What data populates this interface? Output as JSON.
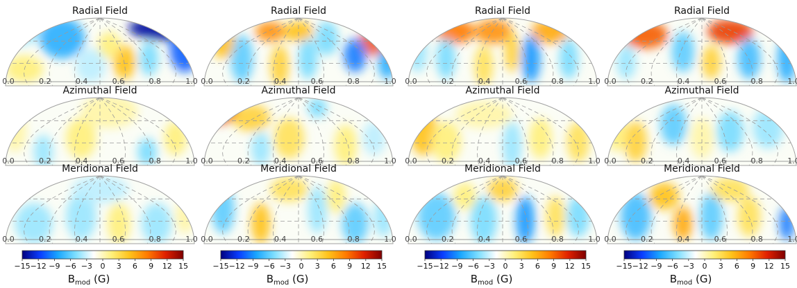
{
  "chart_data": {
    "type": "heatmap",
    "projection": "hemispheric aitoff-like (upper half)",
    "panel_titles": [
      "Radial Field",
      "Azimuthal Field",
      "Meridional Field"
    ],
    "phase_ticks": [
      "0.0",
      "0.2",
      "0.4",
      "0.6",
      "0.8",
      "1.0"
    ],
    "colorbar": {
      "ticks": [
        "−15",
        "−12",
        "−9",
        "−6",
        "−3",
        "0",
        "3",
        "6",
        "9",
        "12",
        "15"
      ],
      "range": [
        -15,
        15
      ],
      "label_main": "B",
      "label_sub": "mod",
      "label_unit": "(G)",
      "colors": [
        "#00007f",
        "#0a3dff",
        "#1aa7ff",
        "#7fdfff",
        "#ffffff",
        "#fff07a",
        "#ffc21a",
        "#ff7a00",
        "#e02000",
        "#7f0000"
      ]
    },
    "columns": [
      {
        "panels": [
          {
            "title": "Radial Field",
            "blobs": [
              {
                "x": 0.05,
                "lat": 0.8,
                "v": -3,
                "rx": 0.14,
                "ry": 0.2
              },
              {
                "x": 0.3,
                "lat": 0.7,
                "v": -7,
                "rx": 0.12,
                "ry": 0.3
              },
              {
                "x": 0.85,
                "lat": 0.85,
                "v": -14,
                "rx": 0.2,
                "ry": 0.18
              },
              {
                "x": 0.95,
                "lat": 0.55,
                "v": -10,
                "rx": 0.08,
                "ry": 0.35
              },
              {
                "x": 0.63,
                "lat": 0.35,
                "v": 6,
                "rx": 0.06,
                "ry": 0.25
              },
              {
                "x": 0.55,
                "lat": 0.6,
                "v": 3,
                "rx": 0.06,
                "ry": 0.2
              },
              {
                "x": 0.1,
                "lat": 0.25,
                "v": 3,
                "rx": 0.1,
                "ry": 0.2
              },
              {
                "x": 0.45,
                "lat": 0.3,
                "v": -2,
                "rx": 0.08,
                "ry": 0.25
              },
              {
                "x": 0.76,
                "lat": 0.4,
                "v": -4,
                "rx": 0.05,
                "ry": 0.25
              }
            ]
          },
          {
            "title": "Azimuthal Field",
            "blobs": [
              {
                "x": 0.2,
                "lat": 0.2,
                "v": -3,
                "rx": 0.05,
                "ry": 0.25
              },
              {
                "x": 0.4,
                "lat": 0.4,
                "v": 3,
                "rx": 0.08,
                "ry": 0.3
              },
              {
                "x": 0.55,
                "lat": 0.8,
                "v": 2,
                "rx": 0.15,
                "ry": 0.25
              },
              {
                "x": 0.75,
                "lat": 0.2,
                "v": -4,
                "rx": 0.05,
                "ry": 0.2
              },
              {
                "x": 0.9,
                "lat": 0.4,
                "v": 3,
                "rx": 0.06,
                "ry": 0.25
              },
              {
                "x": 0.05,
                "lat": 0.5,
                "v": 2,
                "rx": 0.06,
                "ry": 0.3
              }
            ]
          },
          {
            "title": "Meridional Field",
            "blobs": [
              {
                "x": 0.15,
                "lat": 0.3,
                "v": -3,
                "rx": 0.1,
                "ry": 0.3
              },
              {
                "x": 0.4,
                "lat": 0.4,
                "v": -3,
                "rx": 0.08,
                "ry": 0.35
              },
              {
                "x": 0.6,
                "lat": 0.3,
                "v": 3,
                "rx": 0.06,
                "ry": 0.3
              },
              {
                "x": 0.8,
                "lat": 0.3,
                "v": -3,
                "rx": 0.08,
                "ry": 0.3
              },
              {
                "x": 0.5,
                "lat": 0.8,
                "v": -2,
                "rx": 0.15,
                "ry": 0.2
              },
              {
                "x": 0.95,
                "lat": 0.4,
                "v": 2,
                "rx": 0.05,
                "ry": 0.25
              }
            ]
          }
        ]
      },
      {
        "panels": [
          {
            "title": "Radial Field",
            "blobs": [
              {
                "x": 0.35,
                "lat": 0.8,
                "v": 8,
                "rx": 0.08,
                "ry": 0.15
              },
              {
                "x": 0.5,
                "lat": 0.8,
                "v": 6,
                "rx": 0.08,
                "ry": 0.15
              },
              {
                "x": 0.9,
                "lat": 0.65,
                "v": 10,
                "rx": 0.08,
                "ry": 0.2
              },
              {
                "x": 0.8,
                "lat": 0.45,
                "v": -9,
                "rx": 0.06,
                "ry": 0.25
              },
              {
                "x": 0.65,
                "lat": 0.7,
                "v": -4,
                "rx": 0.06,
                "ry": 0.25
              },
              {
                "x": 0.2,
                "lat": 0.4,
                "v": -5,
                "rx": 0.06,
                "ry": 0.35
              },
              {
                "x": 0.1,
                "lat": 0.65,
                "v": 6,
                "rx": 0.06,
                "ry": 0.25
              },
              {
                "x": 0.4,
                "lat": 0.3,
                "v": 5,
                "rx": 0.05,
                "ry": 0.3
              },
              {
                "x": 0.55,
                "lat": 0.4,
                "v": -4,
                "rx": 0.05,
                "ry": 0.3
              },
              {
                "x": 0.97,
                "lat": 0.35,
                "v": -7,
                "rx": 0.05,
                "ry": 0.25
              }
            ]
          },
          {
            "title": "Azimuthal Field",
            "blobs": [
              {
                "x": 0.08,
                "lat": 0.8,
                "v": 11,
                "rx": 0.1,
                "ry": 0.18
              },
              {
                "x": 0.25,
                "lat": 0.7,
                "v": 5,
                "rx": 0.1,
                "ry": 0.2
              },
              {
                "x": 0.45,
                "lat": 0.4,
                "v": 4,
                "rx": 0.08,
                "ry": 0.3
              },
              {
                "x": 0.6,
                "lat": 0.85,
                "v": -4,
                "rx": 0.05,
                "ry": 0.15
              },
              {
                "x": 0.75,
                "lat": 0.3,
                "v": 3,
                "rx": 0.06,
                "ry": 0.3
              },
              {
                "x": 0.3,
                "lat": 0.25,
                "v": -3,
                "rx": 0.05,
                "ry": 0.25
              },
              {
                "x": 0.9,
                "lat": 0.4,
                "v": -2,
                "rx": 0.06,
                "ry": 0.25
              }
            ]
          },
          {
            "title": "Meridional Field",
            "blobs": [
              {
                "x": 0.1,
                "lat": 0.5,
                "v": -5,
                "rx": 0.06,
                "ry": 0.35
              },
              {
                "x": 0.3,
                "lat": 0.3,
                "v": 6,
                "rx": 0.05,
                "ry": 0.3
              },
              {
                "x": 0.45,
                "lat": 0.8,
                "v": 4,
                "rx": 0.1,
                "ry": 0.18
              },
              {
                "x": 0.6,
                "lat": 0.5,
                "v": -3,
                "rx": 0.05,
                "ry": 0.35
              },
              {
                "x": 0.8,
                "lat": 0.3,
                "v": -5,
                "rx": 0.07,
                "ry": 0.3
              },
              {
                "x": 0.7,
                "lat": 0.7,
                "v": 3,
                "rx": 0.05,
                "ry": 0.25
              },
              {
                "x": 0.95,
                "lat": 0.4,
                "v": -3,
                "rx": 0.05,
                "ry": 0.3
              }
            ]
          }
        ]
      },
      {
        "panels": [
          {
            "title": "Radial Field",
            "blobs": [
              {
                "x": 0.25,
                "lat": 0.8,
                "v": 9,
                "rx": 0.1,
                "ry": 0.18
              },
              {
                "x": 0.45,
                "lat": 0.8,
                "v": 8,
                "rx": 0.1,
                "ry": 0.18
              },
              {
                "x": 0.75,
                "lat": 0.8,
                "v": 7,
                "rx": 0.1,
                "ry": 0.18
              },
              {
                "x": 0.65,
                "lat": 0.4,
                "v": -8,
                "rx": 0.05,
                "ry": 0.35
              },
              {
                "x": 0.2,
                "lat": 0.4,
                "v": -4,
                "rx": 0.05,
                "ry": 0.3
              },
              {
                "x": 0.4,
                "lat": 0.3,
                "v": 4,
                "rx": 0.05,
                "ry": 0.3
              },
              {
                "x": 0.55,
                "lat": 0.5,
                "v": 5,
                "rx": 0.04,
                "ry": 0.3
              },
              {
                "x": 0.85,
                "lat": 0.4,
                "v": -4,
                "rx": 0.05,
                "ry": 0.3
              },
              {
                "x": 0.05,
                "lat": 0.5,
                "v": -3,
                "rx": 0.05,
                "ry": 0.3
              }
            ]
          },
          {
            "title": "Azimuthal Field",
            "blobs": [
              {
                "x": 0.08,
                "lat": 0.5,
                "v": 6,
                "rx": 0.07,
                "ry": 0.35
              },
              {
                "x": 0.2,
                "lat": 0.35,
                "v": 3,
                "rx": 0.08,
                "ry": 0.3
              },
              {
                "x": 0.55,
                "lat": 0.3,
                "v": -3,
                "rx": 0.05,
                "ry": 0.35
              },
              {
                "x": 0.7,
                "lat": 0.4,
                "v": 3,
                "rx": 0.06,
                "ry": 0.3
              },
              {
                "x": 0.9,
                "lat": 0.35,
                "v": 4,
                "rx": 0.06,
                "ry": 0.3
              },
              {
                "x": 0.4,
                "lat": 0.75,
                "v": 2,
                "rx": 0.15,
                "ry": 0.2
              }
            ]
          },
          {
            "title": "Meridional Field",
            "blobs": [
              {
                "x": 0.15,
                "lat": 0.4,
                "v": -5,
                "rx": 0.1,
                "ry": 0.35
              },
              {
                "x": 0.4,
                "lat": 0.35,
                "v": -4,
                "rx": 0.07,
                "ry": 0.35
              },
              {
                "x": 0.62,
                "lat": 0.35,
                "v": -8,
                "rx": 0.05,
                "ry": 0.35
              },
              {
                "x": 0.78,
                "lat": 0.4,
                "v": 4,
                "rx": 0.05,
                "ry": 0.3
              },
              {
                "x": 0.5,
                "lat": 0.8,
                "v": 5,
                "rx": 0.08,
                "ry": 0.18
              },
              {
                "x": 0.9,
                "lat": 0.4,
                "v": -4,
                "rx": 0.06,
                "ry": 0.3
              },
              {
                "x": 0.3,
                "lat": 0.7,
                "v": 3,
                "rx": 0.06,
                "ry": 0.2
              }
            ]
          }
        ]
      },
      {
        "panels": [
          {
            "title": "Radial Field",
            "blobs": [
              {
                "x": 0.2,
                "lat": 0.75,
                "v": 10,
                "rx": 0.12,
                "ry": 0.2
              },
              {
                "x": 0.65,
                "lat": 0.8,
                "v": 11,
                "rx": 0.12,
                "ry": 0.18
              },
              {
                "x": 0.4,
                "lat": 0.5,
                "v": -5,
                "rx": 0.06,
                "ry": 0.3
              },
              {
                "x": 0.75,
                "lat": 0.4,
                "v": -6,
                "rx": 0.06,
                "ry": 0.3
              },
              {
                "x": 0.95,
                "lat": 0.4,
                "v": -7,
                "rx": 0.05,
                "ry": 0.35
              },
              {
                "x": 0.55,
                "lat": 0.35,
                "v": 5,
                "rx": 0.05,
                "ry": 0.25
              },
              {
                "x": 0.1,
                "lat": 0.35,
                "v": -3,
                "rx": 0.05,
                "ry": 0.25
              }
            ]
          },
          {
            "title": "Azimuthal Field",
            "blobs": [
              {
                "x": 0.15,
                "lat": 0.35,
                "v": 5,
                "rx": 0.06,
                "ry": 0.3
              },
              {
                "x": 0.35,
                "lat": 0.6,
                "v": -5,
                "rx": 0.07,
                "ry": 0.3
              },
              {
                "x": 0.5,
                "lat": 0.4,
                "v": 2,
                "rx": 0.06,
                "ry": 0.3
              },
              {
                "x": 0.65,
                "lat": 0.5,
                "v": -4,
                "rx": 0.07,
                "ry": 0.3
              },
              {
                "x": 0.85,
                "lat": 0.55,
                "v": -3,
                "rx": 0.08,
                "ry": 0.3
              },
              {
                "x": 0.05,
                "lat": 0.5,
                "v": 3,
                "rx": 0.05,
                "ry": 0.3
              }
            ]
          },
          {
            "title": "Meridional Field",
            "blobs": [
              {
                "x": 0.15,
                "lat": 0.4,
                "v": -6,
                "rx": 0.08,
                "ry": 0.35
              },
              {
                "x": 0.3,
                "lat": 0.7,
                "v": 6,
                "rx": 0.08,
                "ry": 0.2
              },
              {
                "x": 0.4,
                "lat": 0.3,
                "v": 7,
                "rx": 0.05,
                "ry": 0.25
              },
              {
                "x": 0.55,
                "lat": 0.4,
                "v": -5,
                "rx": 0.06,
                "ry": 0.35
              },
              {
                "x": 0.75,
                "lat": 0.4,
                "v": 4,
                "rx": 0.06,
                "ry": 0.3
              },
              {
                "x": 0.95,
                "lat": 0.3,
                "v": -9,
                "rx": 0.04,
                "ry": 0.25
              },
              {
                "x": 0.65,
                "lat": 0.8,
                "v": 4,
                "rx": 0.1,
                "ry": 0.18
              }
            ]
          }
        ]
      }
    ]
  }
}
